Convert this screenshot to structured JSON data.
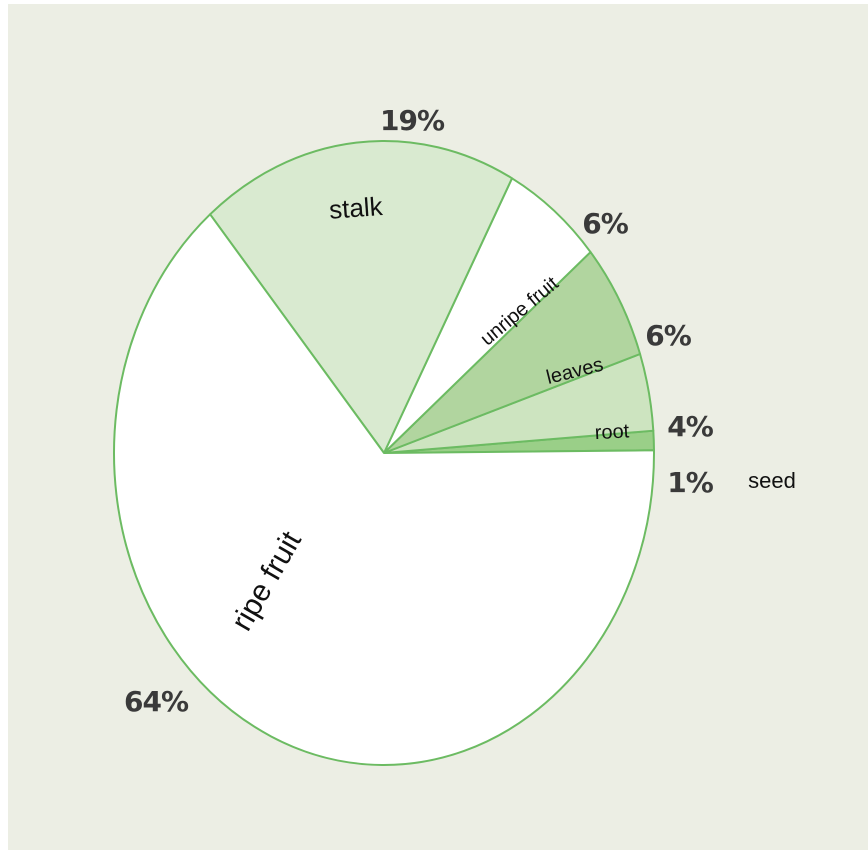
{
  "chart_data": {
    "type": "pie",
    "title": "",
    "slices": [
      {
        "label": "ripe fruit",
        "value": 64,
        "pct_label": "64%",
        "color": "#ffffff"
      },
      {
        "label": "stalk",
        "value": 19,
        "pct_label": "19%",
        "color": "#d9ead0"
      },
      {
        "label": "unripe fruit",
        "value": 6,
        "pct_label": "6%",
        "color": "#ffffff"
      },
      {
        "label": "leaves",
        "value": 6,
        "pct_label": "6%",
        "color": "#b1d59f"
      },
      {
        "label": "root",
        "value": 4,
        "pct_label": "4%",
        "color": "#cde4c0"
      },
      {
        "label": "seed",
        "value": 1,
        "pct_label": "1%",
        "color": "#9acf88"
      }
    ],
    "stroke_color": "#6cbb62",
    "legend": "none"
  }
}
